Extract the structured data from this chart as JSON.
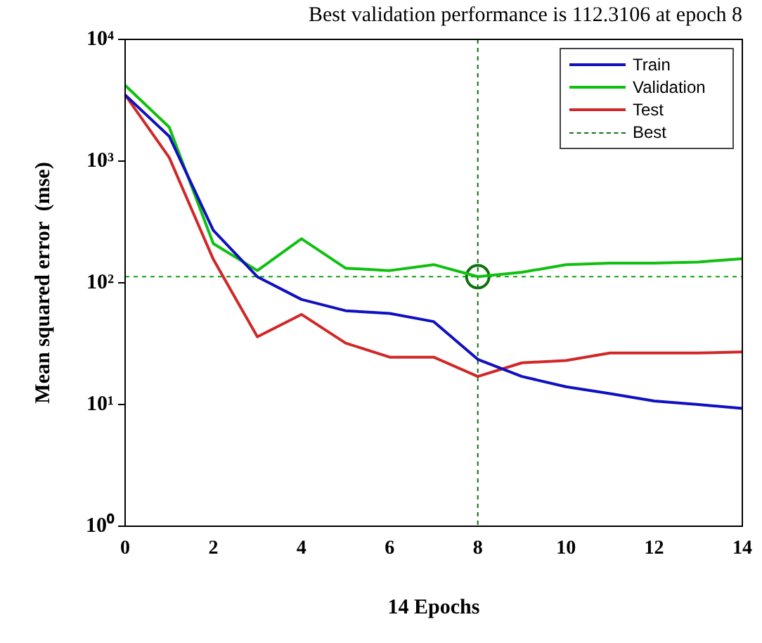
{
  "chart_data": {
    "type": "line",
    "title": "Best validation performance is 112.3106 at epoch 8",
    "xlabel": "14 Epochs",
    "ylabel": "Mean squared error  (mse)",
    "x": [
      0,
      1,
      2,
      3,
      4,
      5,
      6,
      7,
      8,
      9,
      10,
      11,
      12,
      13,
      14
    ],
    "series": [
      {
        "name": "Train",
        "color": "#1010c0",
        "values": [
          3500,
          1600,
          270,
          112,
          73,
          59,
          56,
          48,
          23.5,
          17,
          14,
          12.3,
          10.7,
          10,
          9.3
        ]
      },
      {
        "name": "Validation",
        "color": "#10c010",
        "values": [
          4200,
          1900,
          210,
          126,
          230,
          132,
          126,
          141,
          112.3106,
          122,
          141,
          145,
          145,
          148,
          158
        ]
      },
      {
        "name": "Test",
        "color": "#d02828",
        "values": [
          3500,
          1070,
          156,
          36,
          55,
          32,
          24.5,
          24.5,
          17,
          22,
          23,
          26.5,
          26.5,
          26.5,
          27
        ]
      },
      {
        "name": "Best",
        "type": "scatter",
        "color": "#107010",
        "x": [
          8
        ],
        "values": [
          112.3106
        ],
        "marker": "circle",
        "line_style": "dashed"
      }
    ],
    "ref_lines": [
      {
        "axis": "x",
        "value": 8,
        "color": "#107010",
        "line_style": "dashed"
      },
      {
        "axis": "y",
        "value": 112.3106,
        "color": "#10a010",
        "line_style": "dashed"
      }
    ],
    "log": "y",
    "xlim": [
      0,
      14
    ],
    "xticks": [
      0,
      2,
      4,
      6,
      8,
      10,
      12,
      14
    ],
    "ylim": [
      1,
      10000
    ],
    "yticks": [
      {
        "value": 1,
        "label": "10⁰"
      },
      {
        "value": 10,
        "label": "10¹"
      },
      {
        "value": 100,
        "label": "10²"
      },
      {
        "value": 1000,
        "label": "10³"
      },
      {
        "value": 10000,
        "label": "10⁴"
      }
    ],
    "legend": "top right"
  }
}
